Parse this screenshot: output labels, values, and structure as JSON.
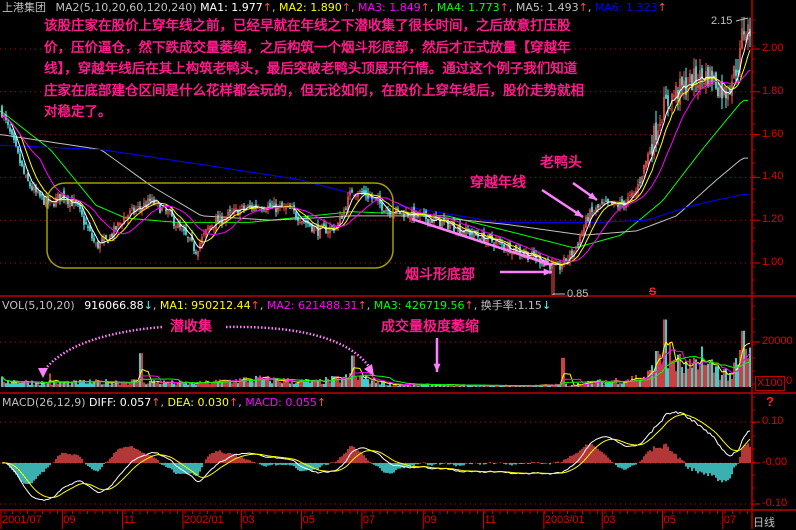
{
  "header": {
    "stock_name": "上港集团",
    "price_indicator": "MA2(5,10,20,60,120,240)",
    "ma": [
      {
        "label": "MA1:",
        "value": "1.977",
        "trend": "↑",
        "color": "#ffffff"
      },
      {
        "label": "MA2:",
        "value": "1.890",
        "trend": "↑",
        "color": "#ffff00"
      },
      {
        "label": "MA3:",
        "value": "1.849",
        "trend": "↑",
        "color": "#ff00ff"
      },
      {
        "label": "MA4:",
        "value": "1.773",
        "trend": "↑",
        "color": "#00ff00"
      },
      {
        "label": "MA5:",
        "value": "1.493",
        "trend": "↑",
        "color": "#c0c0c0"
      },
      {
        "label": "MA6:",
        "value": "1.323",
        "trend": "↑",
        "color": "#0000ff"
      }
    ]
  },
  "volume_header": {
    "indicator": "VOL(5,10,20)",
    "value": "916066.88",
    "value_trend": "↓",
    "ma": [
      {
        "label": "MA1:",
        "value": "950212.44",
        "trend": "↑",
        "color": "#ffff00"
      },
      {
        "label": "MA2:",
        "value": "621488.31",
        "trend": "↑",
        "color": "#ff00ff"
      },
      {
        "label": "MA3:",
        "value": "426719.56",
        "trend": "↑",
        "color": "#00ff00"
      }
    ],
    "turnover_label": "换手率:",
    "turnover_value": "1.15",
    "turnover_trend": "↓"
  },
  "macd_header": {
    "indicator": "MACD(26,12,9)",
    "items": [
      {
        "label": "DIFF:",
        "value": "0.057",
        "trend": "↑",
        "color": "#ffffff"
      },
      {
        "label": "DEA:",
        "value": "0.030",
        "trend": "↑",
        "color": "#ffff00"
      },
      {
        "label": "MACD:",
        "value": "0.055",
        "trend": "↑",
        "color": "#ff00ff"
      }
    ]
  },
  "annotations": {
    "main_note": "该股庄家在股价上穿年线之前，已经早就在年线之下潜收集了很长时间，之后故意打压股价，压价逼仓，然下跌成交量萎缩，之后构筑一个烟斗形底部，然后才正式放量【穿越年线】，穿越年线后在其上构筑老鸭头，最后突破老鸭头顶展开行情。通过这个例子我们知道庄家在底部建仓区间是什么花样都会玩的，但无论如何，在股价上穿年线后，股价走势就相对稳定了。",
    "old_duck_head": "老鸭头",
    "cross_annual_line": "穿越年线",
    "pipe_bottom": "烟斗形底部",
    "latent_accumulation": "潜收集",
    "volume_shrink": "成交量极度萎缩",
    "high_label": "2.15",
    "low_label": "0.85",
    "signal_mark": "S",
    "volume_unit": "X100",
    "question_mark": "?"
  },
  "period_label": "日线",
  "colors": {
    "up": "#ff5050",
    "down": "#54fcfc",
    "grid": "#c00000",
    "annotation": "#ff1a8c",
    "arrow": "#ff80ff",
    "box": "#a0a000"
  },
  "chart_data": [
    {
      "type": "candlestick",
      "title": "上港集团",
      "y_ticks": [
        "2.00",
        "1.80",
        "1.60",
        "1.40",
        "1.20",
        "1.00"
      ],
      "ylim": [
        0.8,
        2.2
      ],
      "x_ticks": [
        "2001/07",
        "09",
        "11",
        "2002/01",
        "03",
        "05",
        "07",
        "09",
        "11",
        "2003/01",
        "03",
        "05",
        "07"
      ],
      "x_tick_dates": [
        "2001-07-01",
        "2001-09-01",
        "2001-11-01",
        "2002-01-01",
        "2002-03-01",
        "2002-05-01",
        "2002-07-01",
        "2002-09-01",
        "2002-11-01",
        "2003-01-01",
        "2003-03-01",
        "2003-05-01",
        "2003-07-01"
      ],
      "close_path": [
        [
          "2001-07-01",
          1.72
        ],
        [
          "2001-07-16",
          1.53
        ],
        [
          "2001-07-26",
          1.39
        ],
        [
          "2001-08-06",
          1.32
        ],
        [
          "2001-08-20",
          1.27
        ],
        [
          "2001-08-31",
          1.32
        ],
        [
          "2001-09-15",
          1.27
        ],
        [
          "2001-10-05",
          1.08
        ],
        [
          "2001-10-15",
          1.1
        ],
        [
          "2001-11-04",
          1.22
        ],
        [
          "2001-11-30",
          1.29
        ],
        [
          "2001-12-19",
          1.22
        ],
        [
          "2002-01-14",
          1.06
        ],
        [
          "2002-01-29",
          1.18
        ],
        [
          "2002-02-28",
          1.25
        ],
        [
          "2002-03-18",
          1.27
        ],
        [
          "2002-04-18",
          1.25
        ],
        [
          "2002-05-18",
          1.15
        ],
        [
          "2002-06-06",
          1.17
        ],
        [
          "2002-06-21",
          1.34
        ],
        [
          "2002-07-06",
          1.32
        ],
        [
          "2002-07-27",
          1.25
        ],
        [
          "2002-08-27",
          1.22
        ],
        [
          "2002-09-27",
          1.18
        ],
        [
          "2002-10-24",
          1.13
        ],
        [
          "2002-11-24",
          1.08
        ],
        [
          "2003-01-01",
          1.01
        ],
        [
          "2003-01-15",
          0.97
        ],
        [
          "2003-02-01",
          1.06
        ],
        [
          "2003-02-15",
          1.22
        ],
        [
          "2003-03-01",
          1.27
        ],
        [
          "2003-03-19",
          1.27
        ],
        [
          "2003-04-03",
          1.32
        ],
        [
          "2003-04-18",
          1.53
        ],
        [
          "2003-05-01",
          1.72
        ],
        [
          "2003-05-13",
          1.79
        ],
        [
          "2003-06-03",
          1.86
        ],
        [
          "2003-06-18",
          1.88
        ],
        [
          "2003-07-03",
          1.79
        ],
        [
          "2003-07-18",
          1.95
        ],
        [
          "2003-07-21",
          2.09
        ]
      ],
      "extremes": {
        "high": {
          "date": "2003-07-21",
          "value": 2.15
        },
        "low": {
          "date": "2003-01-10",
          "value": 0.85
        }
      },
      "series": [
        {
          "name": "MA4",
          "color": "#00ff00",
          "points": [
            [
              "2001-07-01",
              1.71
            ],
            [
              "2001-08-20",
              1.53
            ],
            [
              "2001-10-05",
              1.27
            ],
            [
              "2001-11-04",
              1.21
            ],
            [
              "2001-12-25",
              1.19
            ],
            [
              "2002-03-10",
              1.19
            ],
            [
              "2002-06-21",
              1.24
            ],
            [
              "2002-09-25",
              1.22
            ],
            [
              "2002-11-25",
              1.15
            ],
            [
              "2003-02-01",
              1.07
            ],
            [
              "2003-03-20",
              1.13
            ],
            [
              "2003-05-01",
              1.29
            ],
            [
              "2003-06-10",
              1.53
            ],
            [
              "2003-07-21",
              1.76
            ]
          ]
        },
        {
          "name": "MA5",
          "color": "#c0c0c0",
          "points": [
            [
              "2001-07-01",
              1.6
            ],
            [
              "2001-10-10",
              1.53
            ],
            [
              "2001-11-30",
              1.36
            ],
            [
              "2002-01-20",
              1.22
            ],
            [
              "2002-04-01",
              1.2
            ],
            [
              "2002-06-21",
              1.22
            ],
            [
              "2002-09-01",
              1.22
            ],
            [
              "2002-11-25",
              1.18
            ],
            [
              "2003-02-10",
              1.13
            ],
            [
              "2003-04-05",
              1.15
            ],
            [
              "2003-05-15",
              1.22
            ],
            [
              "2003-06-25",
              1.39
            ],
            [
              "2003-07-21",
              1.49
            ]
          ]
        },
        {
          "name": "MA6",
          "color": "#0000ff",
          "points": [
            [
              "2001-07-01",
              1.55
            ],
            [
              "2001-10-10",
              1.53
            ],
            [
              "2002-01-20",
              1.46
            ],
            [
              "2002-04-28",
              1.39
            ],
            [
              "2002-08-05",
              1.27
            ],
            [
              "2002-11-15",
              1.19
            ],
            [
              "2003-02-25",
              1.19
            ],
            [
              "2003-04-15",
              1.2
            ],
            [
              "2003-06-01",
              1.27
            ],
            [
              "2003-07-21",
              1.32
            ]
          ]
        }
      ]
    },
    {
      "type": "bar",
      "title": "VOL(5,10,20)",
      "unit": "X100",
      "y_ticks": [
        "20000",
        "0"
      ],
      "ylim": [
        0,
        30000
      ],
      "base_path": [
        [
          "2001-07-01",
          3000
        ],
        [
          "2001-08-15",
          1800
        ],
        [
          "2001-11-20",
          2500
        ],
        [
          "2002-01-10",
          1500
        ],
        [
          "2002-03-15",
          3500
        ],
        [
          "2002-05-15",
          2200
        ],
        [
          "2002-06-25",
          4500
        ],
        [
          "2002-08-01",
          1200
        ],
        [
          "2002-10-15",
          700
        ],
        [
          "2002-12-20",
          600
        ],
        [
          "2003-02-01",
          1200
        ],
        [
          "2003-03-15",
          3000
        ],
        [
          "2003-04-15",
          4500
        ],
        [
          "2003-05-05",
          14000
        ],
        [
          "2003-05-25",
          8000
        ],
        [
          "2003-06-20",
          9000
        ],
        [
          "2003-07-10",
          5000
        ],
        [
          "2003-07-21",
          14000
        ]
      ],
      "spikes": [
        [
          "2001-08-20",
          6000
        ],
        [
          "2001-11-20",
          15000
        ],
        [
          "2002-06-22",
          14000
        ],
        [
          "2003-01-20",
          13000
        ],
        [
          "2003-04-25",
          16000
        ],
        [
          "2003-05-03",
          30000
        ],
        [
          "2003-06-10",
          18000
        ],
        [
          "2003-07-21",
          25000
        ]
      ]
    },
    {
      "type": "bar",
      "title": "MACD(26,12,9)",
      "y_ticks": [
        "0.10",
        "-0.00",
        "-0.10"
      ],
      "ylim": [
        -0.12,
        0.16
      ]
    }
  ]
}
